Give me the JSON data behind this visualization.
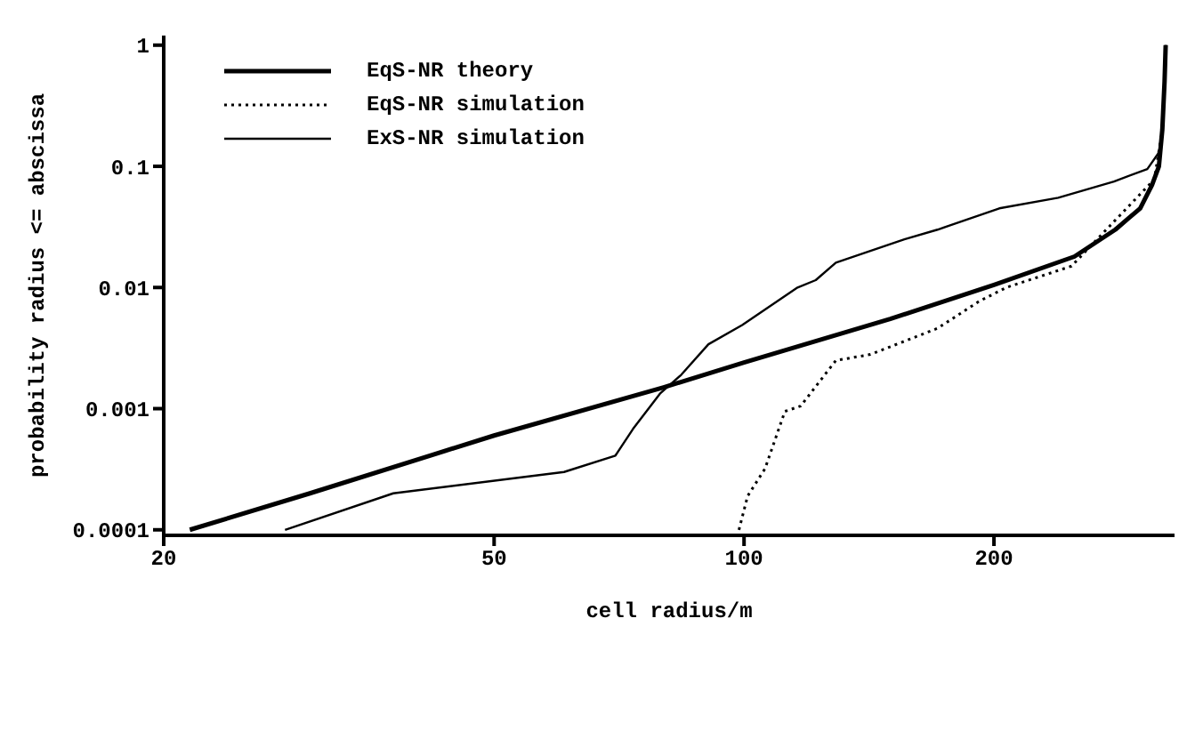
{
  "chart_data": {
    "type": "line",
    "xlabel": "cell radius/m",
    "ylabel": "probability radius <= abscissa",
    "log": "xy",
    "xlim": [
      20,
      330
    ],
    "xticks": [
      20,
      50,
      100,
      200
    ],
    "ylim": [
      9e-05,
      1.2
    ],
    "yticks": [
      0.0001,
      0.001,
      0.01,
      0.1,
      1
    ],
    "grid": false,
    "legend": "top left",
    "marker": "none",
    "series": [
      {
        "name": "EqS-NR theory",
        "color": "#000000",
        "line_style": "solid",
        "x": [
          21.5,
          30,
          50,
          80,
          100,
          150,
          200,
          250,
          280,
          300,
          310,
          316,
          319,
          321,
          322
        ],
        "values": [
          0.0001,
          0.0002,
          0.0006,
          0.0015,
          0.0024,
          0.0055,
          0.0105,
          0.018,
          0.03,
          0.045,
          0.07,
          0.1,
          0.2,
          0.5,
          1
        ]
      },
      {
        "name": "EqS-NR simulation",
        "color": "#000000",
        "line_style": "dotted",
        "x": [
          98.6,
          101,
          106,
          112,
          117,
          129,
          142,
          171,
          192,
          207,
          248,
          279,
          312,
          319,
          321,
          322
        ],
        "values": [
          0.0001,
          0.00019,
          0.00032,
          0.00095,
          0.00105,
          0.0025,
          0.0028,
          0.0046,
          0.0077,
          0.01,
          0.015,
          0.035,
          0.078,
          0.2,
          0.5,
          1
        ]
      },
      {
        "name": "ExS-NR simulation",
        "color": "#000000",
        "line_style": "solid",
        "x": [
          28,
          37.8,
          60.7,
          70,
          73.5,
          79.2,
          84,
          90.6,
          99.5,
          116,
          122,
          129,
          156,
          171,
          203,
          239,
          279,
          306,
          316,
          319,
          321,
          322
        ],
        "values": [
          0.0001,
          0.0002,
          0.0003,
          0.00041,
          0.00068,
          0.00133,
          0.0019,
          0.0034,
          0.0049,
          0.01,
          0.0115,
          0.016,
          0.025,
          0.03,
          0.045,
          0.055,
          0.075,
          0.095,
          0.13,
          0.2,
          0.5,
          1
        ]
      }
    ]
  }
}
